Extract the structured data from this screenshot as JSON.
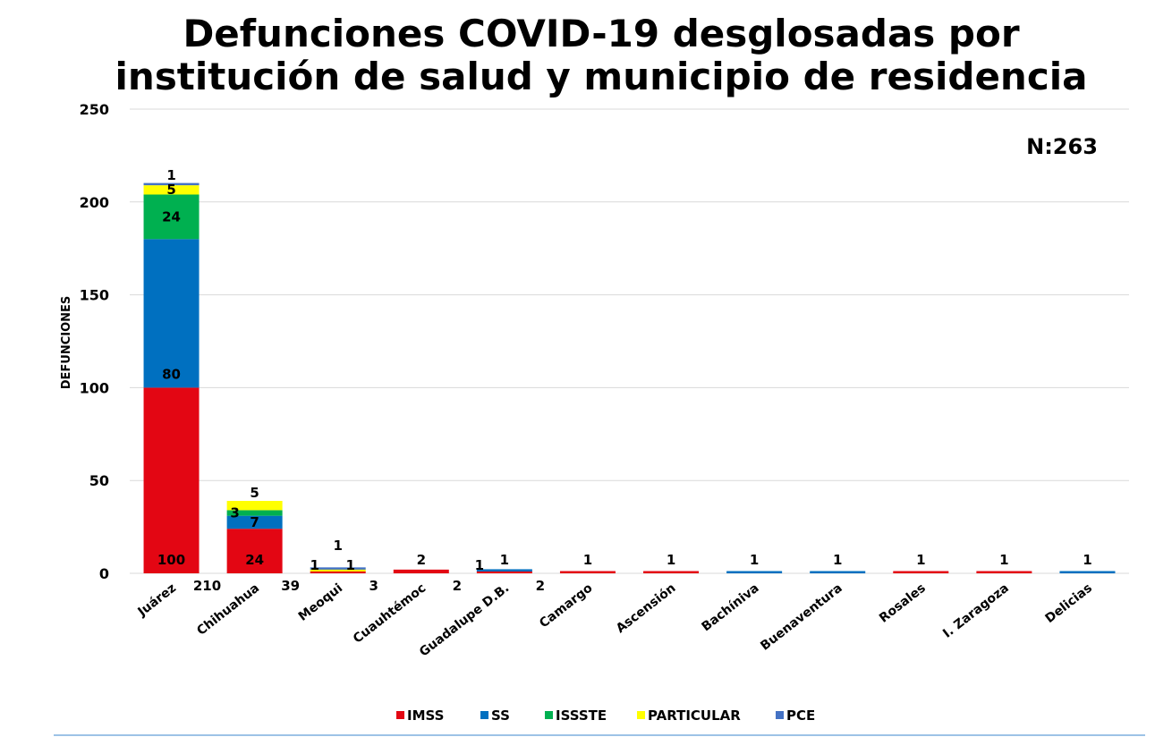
{
  "chart_data": {
    "type": "bar",
    "stacked": true,
    "title_line1": "Defunciones COVID-19 desglosadas por",
    "title_line2": "institución de salud y municipio de residencia",
    "annotation": "N:263",
    "ylabel": "DEFUNCIONES",
    "xlabel": "",
    "ylim": [
      0,
      250
    ],
    "yticks": [
      0,
      50,
      100,
      150,
      200,
      250
    ],
    "grid": true,
    "legend_position": "bottom",
    "categories": [
      "Juárez",
      "Chihuahua",
      "Meoqui",
      "Cuauhtémoc",
      "Guadalupe D.B.",
      "Camargo",
      "Ascensión",
      "Bachíniva",
      "Buenaventura",
      "Rosales",
      "I. Zaragoza",
      "Delicias"
    ],
    "totals": [
      210,
      39,
      3,
      2,
      2,
      null,
      null,
      null,
      null,
      null,
      null,
      null
    ],
    "series": [
      {
        "name": "IMSS",
        "color": "#e30613",
        "values": [
          100,
          24,
          1,
          2,
          1,
          1,
          1,
          0,
          0,
          1,
          1,
          0
        ]
      },
      {
        "name": "SS",
        "color": "#0070c0",
        "values": [
          80,
          7,
          0,
          0,
          1,
          0,
          0,
          1,
          1,
          0,
          0,
          1
        ]
      },
      {
        "name": "ISSSTE",
        "color": "#00b050",
        "values": [
          24,
          3,
          0,
          0,
          0,
          0,
          0,
          0,
          0,
          0,
          0,
          0
        ]
      },
      {
        "name": "PARTICULAR",
        "color": "#ffff00",
        "values": [
          5,
          5,
          1,
          0,
          0,
          0,
          0,
          0,
          0,
          0,
          0,
          0
        ]
      },
      {
        "name": "PCE",
        "color": "#4472c4",
        "values": [
          1,
          0,
          1,
          0,
          0,
          0,
          0,
          0,
          0,
          0,
          0,
          0
        ]
      }
    ]
  }
}
